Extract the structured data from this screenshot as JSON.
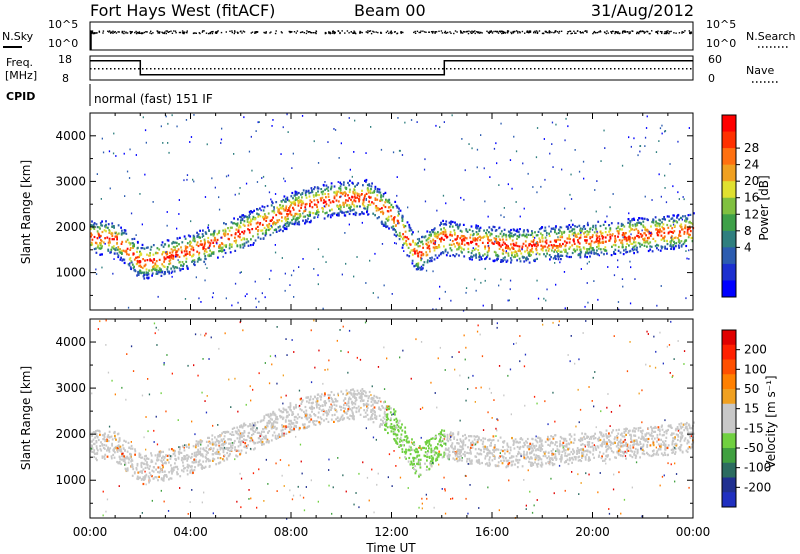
{
  "header": {
    "site": "Fort Hays West (fitACF)",
    "beam": "Beam 00",
    "date": "31/Aug/2012"
  },
  "panel_labels": {
    "nsky": "N.Sky",
    "nsearch": "N.Search",
    "freq_line1": "Freq.",
    "freq_line2": "[MHz]",
    "nave": "Nave",
    "cpid": "CPID",
    "cpid_value": "normal (fast) 151 IF"
  },
  "chart_data": [
    {
      "type": "scatter",
      "name": "noise",
      "left_axis": {
        "ticks": [
          "10^5",
          "10^0"
        ],
        "ylim": [
          0,
          5
        ],
        "scale": "log"
      },
      "right_axis": {
        "ticks": [
          "10^5",
          "10^0"
        ],
        "ylim": [
          0,
          5
        ],
        "scale": "log"
      },
      "nsky_level": 3.3,
      "nsearch_level": 3.4
    },
    {
      "type": "line",
      "name": "freq-nave",
      "left_axis": {
        "ticks": [
          "18",
          "8"
        ],
        "ylim": [
          8,
          18
        ],
        "label": "Freq. [MHz]"
      },
      "right_axis": {
        "ticks": [
          "60",
          "0"
        ],
        "ylim": [
          0,
          60
        ],
        "label": "Nave"
      },
      "freq_steps": [
        {
          "x": [
            0,
            2.0
          ],
          "y": 16.0
        },
        {
          "x": [
            2.0,
            14.1
          ],
          "y": 10.2
        },
        {
          "x": [
            14.1,
            24
          ],
          "y": 16.0
        }
      ],
      "nave_level": 28
    },
    {
      "type": "heatmap",
      "name": "power",
      "title": "",
      "xlabel": "",
      "ylabel": "Slant Range [km]",
      "xlim": [
        0,
        24
      ],
      "ylim": [
        180,
        4500
      ],
      "yticks": [
        1000,
        2000,
        3000,
        4000
      ],
      "colorbar": {
        "label": "Power [dB]",
        "ticks": [
          "28",
          "24",
          "20",
          "16",
          "12",
          "8",
          "4"
        ],
        "colors": [
          "#0000ff",
          "#1c30d0",
          "#2c5cb0",
          "#2f7f7f",
          "#3ea048",
          "#80c040",
          "#e0e030",
          "#f0a020",
          "#ff7010",
          "#ff3000",
          "#ff0000"
        ]
      },
      "band": {
        "hours": [
          0,
          1,
          2,
          3,
          4,
          5,
          6,
          7,
          8,
          9,
          10,
          11,
          12,
          13,
          14,
          15,
          16,
          17,
          18,
          19,
          20,
          21,
          22,
          23,
          24
        ],
        "center_km": [
          1800,
          1760,
          1250,
          1350,
          1500,
          1700,
          1900,
          2150,
          2400,
          2550,
          2650,
          2680,
          2300,
          1400,
          1800,
          1700,
          1650,
          1600,
          1650,
          1700,
          1750,
          1800,
          1850,
          1900,
          1950
        ]
      }
    },
    {
      "type": "heatmap",
      "name": "velocity",
      "title": "",
      "xlabel": "Time UT",
      "ylabel": "Slant Range [km]",
      "xlim": [
        0,
        24
      ],
      "ylim": [
        180,
        4500
      ],
      "yticks": [
        1000,
        2000,
        3000,
        4000
      ],
      "xticks": [
        "00:00",
        "04:00",
        "08:00",
        "12:00",
        "16:00",
        "20:00",
        "00:00"
      ],
      "colorbar": {
        "label": "Velocity [m s⁻¹]",
        "ticks": [
          "200",
          "100",
          "50",
          "15",
          "-15",
          "-50",
          "-100",
          "-200"
        ],
        "colors": [
          "#2030c0",
          "#203090",
          "#2c6c60",
          "#40a040",
          "#70d040",
          "#c8c8c8",
          "#c8c8c8",
          "#f0a020",
          "#ff8000",
          "#ff5000",
          "#ff2000",
          "#e00000"
        ]
      }
    }
  ]
}
